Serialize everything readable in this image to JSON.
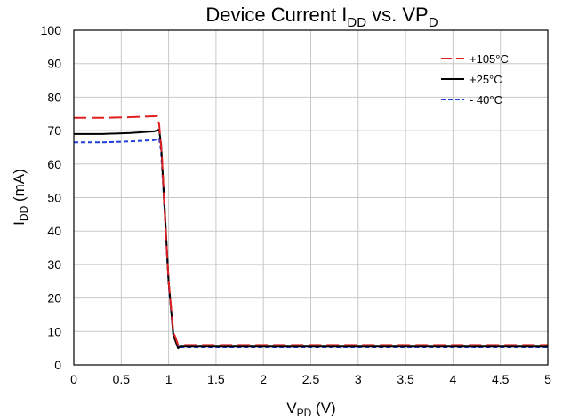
{
  "chart_data": {
    "type": "line",
    "title": {
      "main": "Device Current I",
      "main_sub": "DD",
      "mid": " vs. VP",
      "mid_sub": "D"
    },
    "xlabel": {
      "main": "V",
      "sub": "PD",
      "rest": " (V)"
    },
    "ylabel": {
      "main": "I",
      "sub": "DD",
      "rest": " (mA)"
    },
    "xlim": [
      0,
      5
    ],
    "ylim": [
      0,
      100
    ],
    "xticks": [
      "0",
      "0.5",
      "1",
      "1.5",
      "2",
      "2.5",
      "3",
      "3.5",
      "4",
      "4.5",
      "5"
    ],
    "yticks": [
      "0",
      "10",
      "20",
      "30",
      "40",
      "50",
      "60",
      "70",
      "80",
      "90",
      "100"
    ],
    "grid": true,
    "legend_position": "top-right",
    "series": [
      {
        "name": "+105°C",
        "color": "#e02020",
        "dash": "long-dash",
        "x": [
          0,
          0.3,
          0.6,
          0.88,
          0.9,
          0.93,
          0.96,
          1.0,
          1.05,
          1.1,
          1.12,
          1.2,
          2,
          3,
          4,
          5
        ],
        "y": [
          73.8,
          73.8,
          74.0,
          74.3,
          72,
          62,
          45,
          25,
          10,
          6,
          6,
          6,
          6,
          6,
          6,
          6
        ]
      },
      {
        "name": "+25°C",
        "color": "#000000",
        "dash": "solid",
        "x": [
          0,
          0.3,
          0.6,
          0.85,
          0.9,
          0.92,
          0.96,
          1.0,
          1.05,
          1.1,
          1.12,
          1.2,
          2,
          3,
          4,
          5
        ],
        "y": [
          69.0,
          69.0,
          69.3,
          69.8,
          70.3,
          66,
          46,
          25,
          9,
          5,
          5.5,
          5.5,
          5.5,
          5.5,
          5.5,
          5.5
        ]
      },
      {
        "name": "- 40°C",
        "color": "#1f3fdc",
        "dash": "short-dash",
        "x": [
          0,
          0.3,
          0.6,
          0.85,
          0.9,
          0.92,
          0.96,
          1.0,
          1.05,
          1.1,
          1.12,
          1.2,
          2,
          3,
          4,
          5
        ],
        "y": [
          66.5,
          66.5,
          66.8,
          67.2,
          67.6,
          64,
          45,
          24,
          9,
          5,
          5.3,
          5.3,
          5.3,
          5.3,
          5.3,
          5.3
        ]
      }
    ]
  }
}
